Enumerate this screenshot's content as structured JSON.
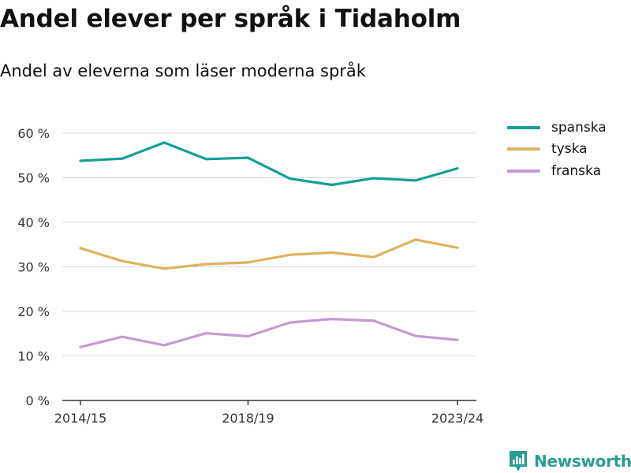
{
  "title": "Andel elever per språk i Tidaholm",
  "subtitle": "Andel av eleverna som läser moderna språk",
  "brand": {
    "name": "Newsworthy",
    "icon": "newsworthy-logo-icon",
    "color": "#2a9d94"
  },
  "chart_data": {
    "type": "line",
    "x": [
      "2014/15",
      "2015/16",
      "2016/17",
      "2017/18",
      "2018/19",
      "2019/20",
      "2020/21",
      "2021/22",
      "2022/23",
      "2023/24"
    ],
    "x_tick_labels": [
      "2014/15",
      "2018/19",
      "2023/24"
    ],
    "y_ticks": [
      0,
      10,
      20,
      30,
      40,
      50,
      60
    ],
    "y_tick_labels": [
      "0 %",
      "10 %",
      "20 %",
      "30 %",
      "40 %",
      "50 %",
      "60 %"
    ],
    "ylim": [
      0,
      60
    ],
    "grid": true,
    "legend_position": "right",
    "series": [
      {
        "name": "spanska",
        "color": "#13a094",
        "values": [
          53.8,
          54.3,
          57.9,
          54.2,
          54.5,
          49.8,
          48.4,
          49.9,
          49.4,
          52.1
        ]
      },
      {
        "name": "tyska",
        "color": "#ddb35f",
        "values": [
          34.2,
          31.3,
          29.6,
          30.6,
          31.0,
          32.7,
          33.2,
          32.2,
          36.1,
          34.3
        ]
      },
      {
        "name": "franska",
        "color": "#c29ccf",
        "values": [
          12.0,
          14.3,
          12.4,
          15.1,
          14.4,
          17.5,
          18.3,
          17.9,
          14.5,
          13.6
        ]
      }
    ]
  }
}
